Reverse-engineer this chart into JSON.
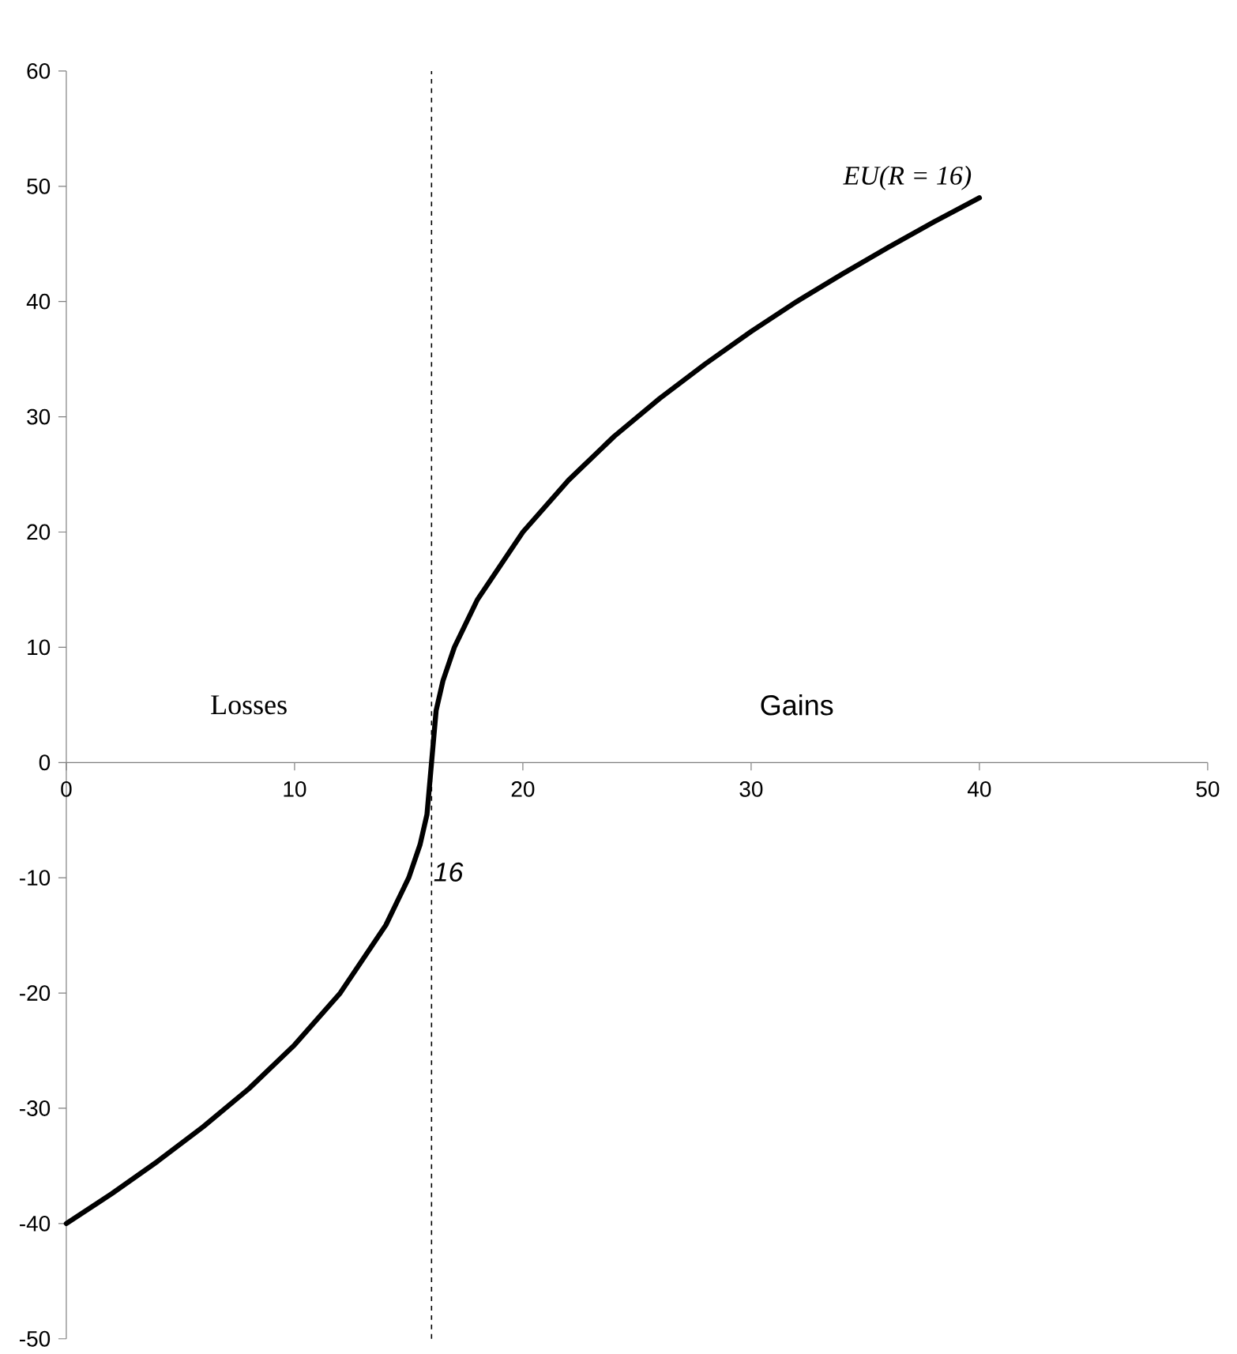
{
  "chart_data": {
    "type": "line",
    "x": [
      0,
      2,
      4,
      6,
      8,
      10,
      12,
      14,
      15,
      15.5,
      15.8,
      16,
      16.2,
      16.5,
      17,
      18,
      20,
      22,
      24,
      26,
      28,
      30,
      32,
      34,
      36,
      38,
      40
    ],
    "series": [
      {
        "name": "EU(R = 16)",
        "color": "#000000",
        "values": [
          -40,
          -37.4,
          -34.6,
          -31.6,
          -28.3,
          -24.5,
          -20,
          -14.1,
          -10,
          -7.1,
          -4.5,
          0,
          4.5,
          7.1,
          10,
          14.1,
          20,
          24.5,
          28.3,
          31.6,
          34.6,
          37.4,
          40,
          42.4,
          44.7,
          46.9,
          49
        ]
      }
    ],
    "xlim": [
      0,
      50
    ],
    "ylim": [
      -50,
      60
    ],
    "xticks": [
      0,
      10,
      20,
      30,
      40,
      50
    ],
    "yticks": [
      -50,
      -40,
      -30,
      -20,
      -10,
      0,
      10,
      20,
      30,
      40,
      50,
      60
    ],
    "ref_lines": [
      {
        "axis": "x",
        "value": 16,
        "label": "16",
        "color": "#000000",
        "line_style": "dashed"
      }
    ],
    "annotations": [
      "Losses",
      "Gains"
    ],
    "grid": false,
    "legend": false,
    "marker": "none",
    "line_style": "solid"
  }
}
